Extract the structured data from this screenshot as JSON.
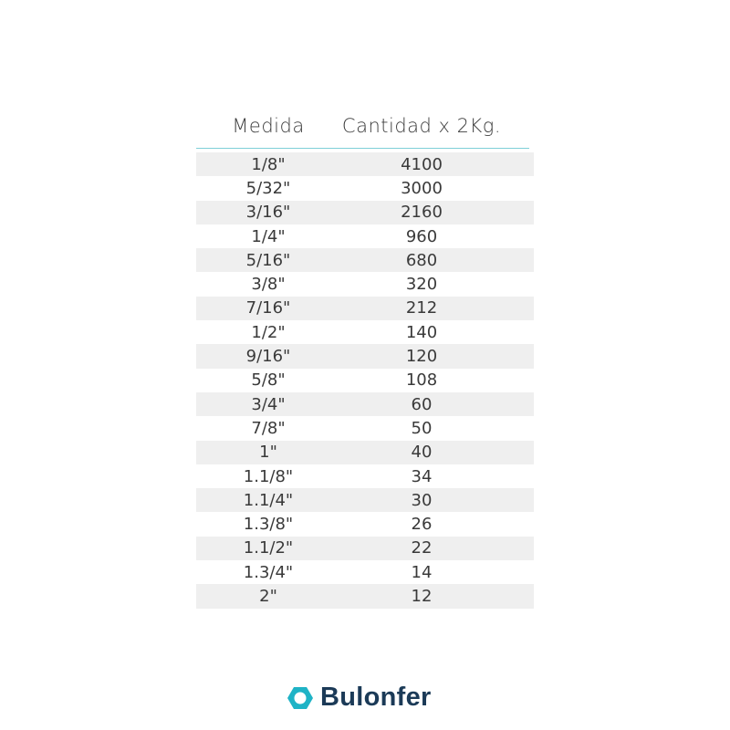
{
  "table": {
    "headers": [
      "Medida",
      "Cantidad x 2Kg."
    ],
    "rows": [
      [
        "1/8\"",
        "4100"
      ],
      [
        "5/32\"",
        "3000"
      ],
      [
        "3/16\"",
        "2160"
      ],
      [
        "1/4\"",
        "960"
      ],
      [
        "5/16\"",
        "680"
      ],
      [
        "3/8\"",
        "320"
      ],
      [
        "7/16\"",
        "212"
      ],
      [
        "1/2\"",
        "140"
      ],
      [
        "9/16\"",
        "120"
      ],
      [
        "5/8\"",
        "108"
      ],
      [
        "3/4\"",
        "60"
      ],
      [
        "7/8\"",
        "50"
      ],
      [
        "1\"",
        "40"
      ],
      [
        "1.1/8\"",
        "34"
      ],
      [
        "1.1/4\"",
        "30"
      ],
      [
        "1.3/8\"",
        "26"
      ],
      [
        "1.1/2\"",
        "22"
      ],
      [
        "1.3/4\"",
        "14"
      ],
      [
        "2\"",
        "12"
      ]
    ]
  },
  "logo": {
    "text": "Bulonfer",
    "icon": "hexagon-icon",
    "icon_color": "#1fb3c6",
    "text_color": "#1b3a57"
  },
  "colors": {
    "rule": "#7fcfd8",
    "stripe": "#efefef"
  }
}
